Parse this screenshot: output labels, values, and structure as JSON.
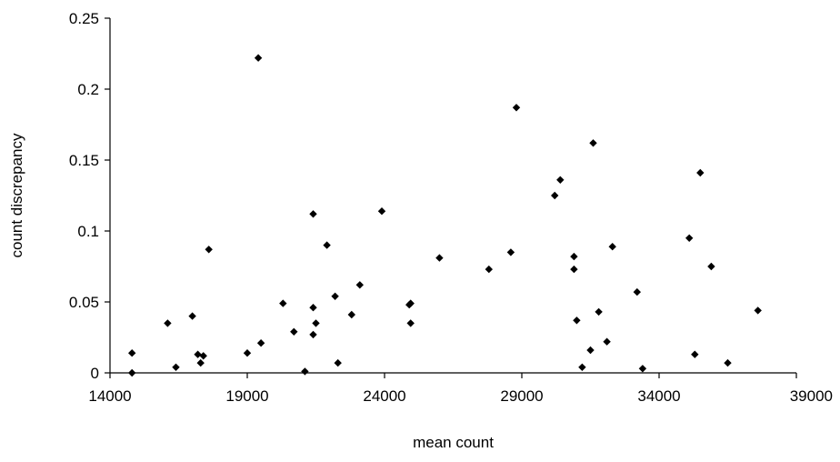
{
  "chart_data": {
    "type": "scatter",
    "xlabel": "mean count",
    "ylabel": "count discrepancy",
    "xlim": [
      14000,
      39000
    ],
    "ylim": [
      0,
      0.25
    ],
    "x_ticks": [
      14000,
      19000,
      24000,
      29000,
      34000,
      39000
    ],
    "y_ticks": [
      0,
      0.05,
      0.1,
      0.15,
      0.2,
      0.25
    ],
    "x_tick_labels": [
      "14000",
      "19000",
      "24000",
      "29000",
      "34000",
      "39000"
    ],
    "y_tick_labels": [
      "0",
      "0.05",
      "0.1",
      "0.15",
      "0.2",
      "0.25"
    ],
    "grid": false,
    "marker": "diamond",
    "marker_color": "#000000",
    "points": [
      {
        "x": 14800,
        "y": 0.014
      },
      {
        "x": 14800,
        "y": 0.0
      },
      {
        "x": 16100,
        "y": 0.035
      },
      {
        "x": 16400,
        "y": 0.004
      },
      {
        "x": 17000,
        "y": 0.04
      },
      {
        "x": 17200,
        "y": 0.013
      },
      {
        "x": 17300,
        "y": 0.007
      },
      {
        "x": 17400,
        "y": 0.012
      },
      {
        "x": 17600,
        "y": 0.087
      },
      {
        "x": 19000,
        "y": 0.014
      },
      {
        "x": 19400,
        "y": 0.222
      },
      {
        "x": 19500,
        "y": 0.021
      },
      {
        "x": 20300,
        "y": 0.049
      },
      {
        "x": 20700,
        "y": 0.029
      },
      {
        "x": 21100,
        "y": 0.001
      },
      {
        "x": 21400,
        "y": 0.112
      },
      {
        "x": 21400,
        "y": 0.046
      },
      {
        "x": 21400,
        "y": 0.027
      },
      {
        "x": 21500,
        "y": 0.035
      },
      {
        "x": 21900,
        "y": 0.09
      },
      {
        "x": 22200,
        "y": 0.054
      },
      {
        "x": 22300,
        "y": 0.007
      },
      {
        "x": 22800,
        "y": 0.041
      },
      {
        "x": 23100,
        "y": 0.062
      },
      {
        "x": 23900,
        "y": 0.114
      },
      {
        "x": 24900,
        "y": 0.048
      },
      {
        "x": 24950,
        "y": 0.049
      },
      {
        "x": 24950,
        "y": 0.035
      },
      {
        "x": 26000,
        "y": 0.081
      },
      {
        "x": 27800,
        "y": 0.073
      },
      {
        "x": 28600,
        "y": 0.085
      },
      {
        "x": 28800,
        "y": 0.187
      },
      {
        "x": 30200,
        "y": 0.125
      },
      {
        "x": 30400,
        "y": 0.136
      },
      {
        "x": 30900,
        "y": 0.082
      },
      {
        "x": 30900,
        "y": 0.073
      },
      {
        "x": 31000,
        "y": 0.037
      },
      {
        "x": 31200,
        "y": 0.004
      },
      {
        "x": 31500,
        "y": 0.016
      },
      {
        "x": 31600,
        "y": 0.162
      },
      {
        "x": 31800,
        "y": 0.043
      },
      {
        "x": 32100,
        "y": 0.022
      },
      {
        "x": 32300,
        "y": 0.089
      },
      {
        "x": 33200,
        "y": 0.057
      },
      {
        "x": 33400,
        "y": 0.003
      },
      {
        "x": 35100,
        "y": 0.095
      },
      {
        "x": 35300,
        "y": 0.013
      },
      {
        "x": 35500,
        "y": 0.141
      },
      {
        "x": 35900,
        "y": 0.075
      },
      {
        "x": 36500,
        "y": 0.007
      },
      {
        "x": 37600,
        "y": 0.044
      }
    ]
  }
}
